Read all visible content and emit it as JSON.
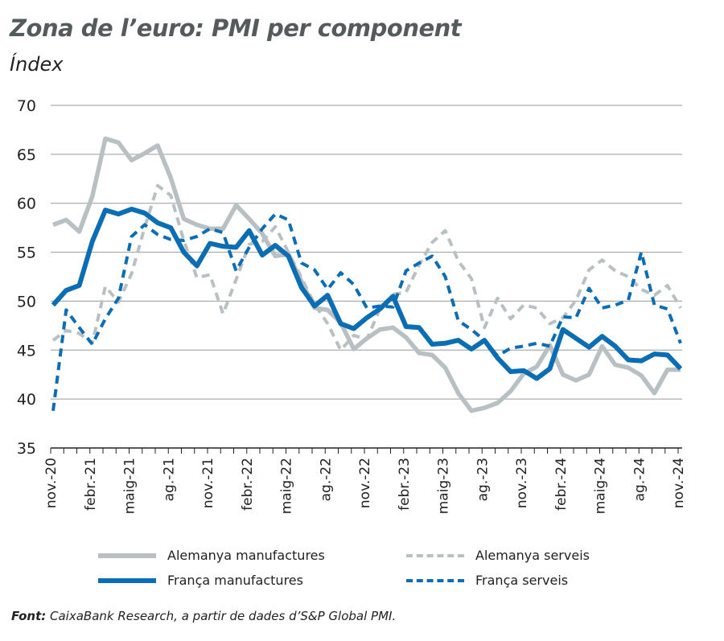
{
  "chart_data": {
    "type": "line",
    "title": "Zona de l’euro: PMI per component",
    "subtitle": "Índex",
    "ylim": [
      35,
      70
    ],
    "yticks": [
      35,
      40,
      45,
      50,
      55,
      60,
      65,
      70
    ],
    "grid": true,
    "legend_placement": "bottom",
    "x_tick_labels": [
      "nov.-20",
      "febr.-21",
      "maig-21",
      "ag.-21",
      "nov.-21",
      "febr.-22",
      "maig-22",
      "ag.-22",
      "nov.-22",
      "febr.-23",
      "maig-23",
      "ag.-23",
      "nov.-23",
      "febr.-24",
      "maig-24",
      "ag.-24",
      "nov.-24"
    ],
    "x_start": "nov.-20",
    "x_end": "nov.-24",
    "series": [
      {
        "name": "Alemanya manufactures",
        "color": "#b9c0c3",
        "style": "solid",
        "values": [
          57.8,
          58.3,
          57.1,
          60.7,
          66.6,
          66.2,
          64.4,
          65.1,
          65.9,
          62.6,
          58.4,
          57.8,
          57.4,
          57.4,
          59.8,
          58.4,
          56.9,
          54.6,
          54.8,
          52.0,
          49.3,
          49.1,
          47.8,
          45.1,
          46.2,
          47.1,
          47.3,
          46.3,
          44.7,
          44.5,
          43.2,
          40.6,
          38.8,
          39.1,
          39.6,
          40.8,
          42.6,
          43.3,
          45.5,
          42.5,
          41.9,
          42.5,
          45.4,
          43.5,
          43.2,
          42.4,
          40.6,
          43.0,
          43.0
        ]
      },
      {
        "name": "Alemanya serveis",
        "color": "#b9c0c3",
        "style": "dashed",
        "values": [
          46.0,
          47.0,
          46.7,
          45.7,
          51.5,
          49.9,
          52.8,
          57.5,
          61.8,
          60.8,
          56.2,
          52.4,
          52.7,
          48.7,
          52.2,
          55.8,
          56.1,
          57.6,
          55.0,
          52.4,
          49.7,
          47.7,
          45.0,
          46.5,
          46.1,
          49.2,
          50.7,
          50.9,
          53.7,
          56.0,
          57.2,
          54.1,
          52.3,
          47.3,
          50.3,
          48.2,
          49.6,
          49.3,
          47.7,
          48.3,
          50.1,
          53.2,
          54.2,
          53.1,
          52.5,
          51.2,
          50.6,
          51.6,
          49.3
        ]
      },
      {
        "name": "França manufactures",
        "color": "#0b6db3",
        "style": "solid",
        "values": [
          49.6,
          51.1,
          51.6,
          56.1,
          59.3,
          58.9,
          59.4,
          59.0,
          58.0,
          57.5,
          55.0,
          53.6,
          55.9,
          55.6,
          55.5,
          57.2,
          54.7,
          55.7,
          54.6,
          51.4,
          49.5,
          50.6,
          47.7,
          47.2,
          48.3,
          49.2,
          50.5,
          47.4,
          47.3,
          45.6,
          45.7,
          46.0,
          45.1,
          46.0,
          44.2,
          42.8,
          42.9,
          42.1,
          43.1,
          47.1,
          46.2,
          45.3,
          46.4,
          45.4,
          44.0,
          43.9,
          44.6,
          44.5,
          43.1
        ]
      },
      {
        "name": "França serveis",
        "color": "#0b6db3",
        "style": "dashed",
        "values": [
          38.8,
          49.1,
          47.3,
          45.6,
          48.2,
          50.3,
          56.6,
          57.8,
          56.8,
          56.3,
          56.2,
          56.6,
          57.4,
          57.0,
          53.1,
          55.5,
          57.4,
          58.9,
          58.3,
          53.9,
          53.2,
          51.2,
          52.9,
          51.7,
          49.3,
          49.5,
          49.4,
          53.1,
          53.9,
          54.6,
          52.5,
          48.0,
          47.1,
          46.0,
          44.4,
          45.2,
          45.4,
          45.7,
          45.4,
          48.4,
          48.3,
          51.3,
          49.3,
          49.6,
          50.1,
          55.0,
          49.6,
          49.2,
          45.7
        ]
      }
    ]
  },
  "source": {
    "label": "Font:",
    "text": " CaixaBank Research, a partir de dades d’S&P Global PMI."
  }
}
